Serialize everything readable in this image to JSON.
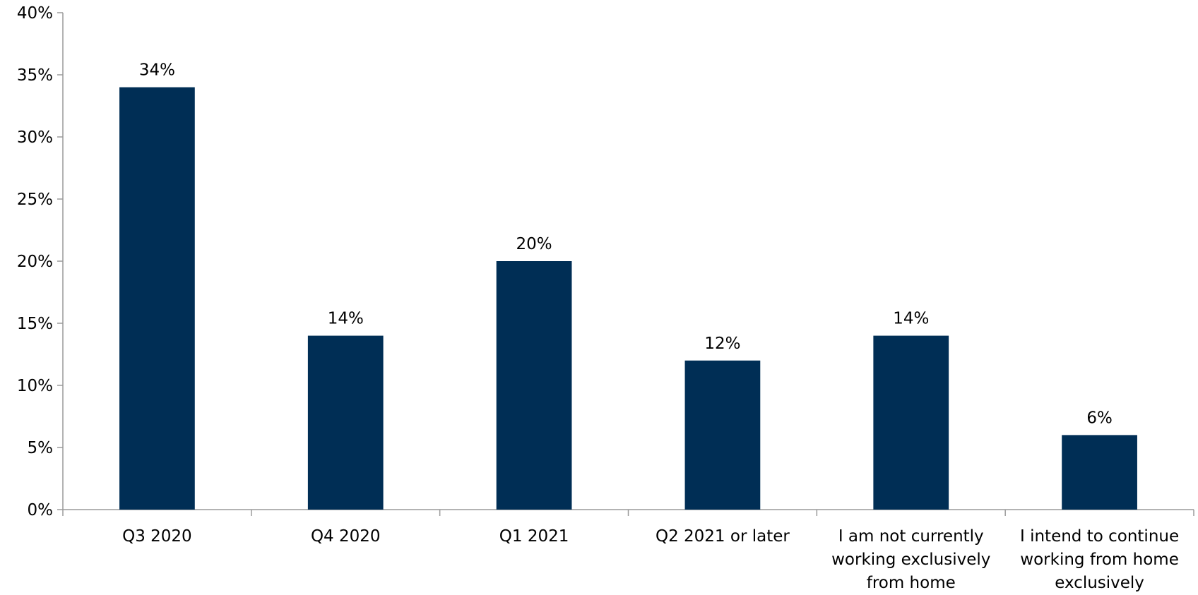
{
  "chart_data": {
    "type": "bar",
    "title": "",
    "xlabel": "",
    "ylabel": "",
    "categories": [
      "Q3 2020",
      "Q4 2020",
      "Q1 2021",
      "Q2 2021 or later",
      "I am not currently working exclusively from home",
      "I intend to continue working from home exclusively"
    ],
    "category_lines": [
      [
        "Q3 2020"
      ],
      [
        "Q4 2020"
      ],
      [
        "Q1 2021"
      ],
      [
        "Q2 2021 or later"
      ],
      [
        "I am not currently",
        "working exclusively",
        "from home"
      ],
      [
        "I intend to continue",
        "working from home",
        "exclusively"
      ]
    ],
    "values": [
      34,
      14,
      20,
      12,
      14,
      6
    ],
    "data_labels": [
      "34%",
      "14%",
      "20%",
      "12%",
      "14%",
      "6%"
    ],
    "ylim": [
      0,
      40
    ],
    "yticks": [
      0,
      5,
      10,
      15,
      20,
      25,
      30,
      35,
      40
    ],
    "ytick_labels": [
      "0%",
      "5%",
      "10%",
      "15%",
      "20%",
      "25%",
      "30%",
      "35%",
      "40%"
    ],
    "grid": false,
    "legend": "none",
    "bar_color": "#002E55",
    "axis_color": "#9A9A9A"
  }
}
